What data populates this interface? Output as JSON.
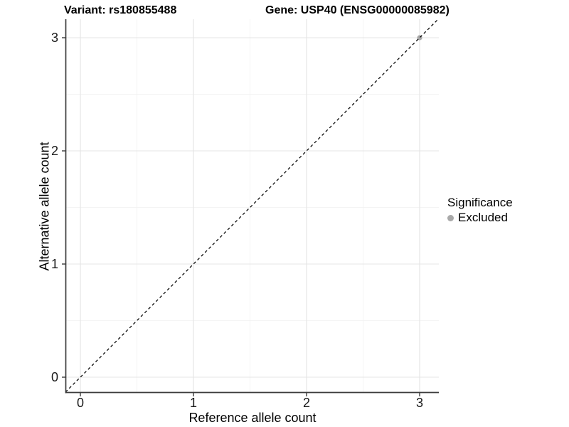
{
  "titles": {
    "variant": "Variant: rs180855488",
    "gene": "Gene: USP40 (ENSG00000085982)"
  },
  "axes": {
    "x": {
      "label": "Reference allele count",
      "tick_labels": [
        "0",
        "1",
        "2",
        "3"
      ]
    },
    "y": {
      "label": "Alternative allele count",
      "tick_labels": [
        "0",
        "1",
        "2",
        "3"
      ]
    }
  },
  "legend": {
    "title": "Significance",
    "items": [
      {
        "label": "Excluded",
        "color": "#a9a9a9"
      }
    ]
  },
  "chart_data": {
    "type": "scatter",
    "title": "Variant: rs180855488  |  Gene: USP40 (ENSG00000085982)",
    "xlabel": "Reference allele count",
    "ylabel": "Alternative allele count",
    "xlim": [
      -0.13,
      3.17
    ],
    "ylim": [
      -0.13,
      3.17
    ],
    "x_ticks": [
      0,
      1,
      2,
      3
    ],
    "y_ticks": [
      0,
      1,
      2,
      3
    ],
    "minor_ticks": [
      0.5,
      1.5,
      2.5
    ],
    "grid": true,
    "legend_position": "right",
    "series": [
      {
        "name": "Excluded",
        "color": "#a9a9a9",
        "points": [
          {
            "x": 3,
            "y": 3
          }
        ]
      }
    ],
    "reference_line": {
      "type": "identity",
      "style": "dashed",
      "color": "#000000"
    },
    "style": {
      "panel_background": "#ffffff",
      "grid_major_color": "#e4e4e4",
      "grid_minor_color": "#f1f1f1",
      "axis_color": "#3c3c3c"
    }
  }
}
